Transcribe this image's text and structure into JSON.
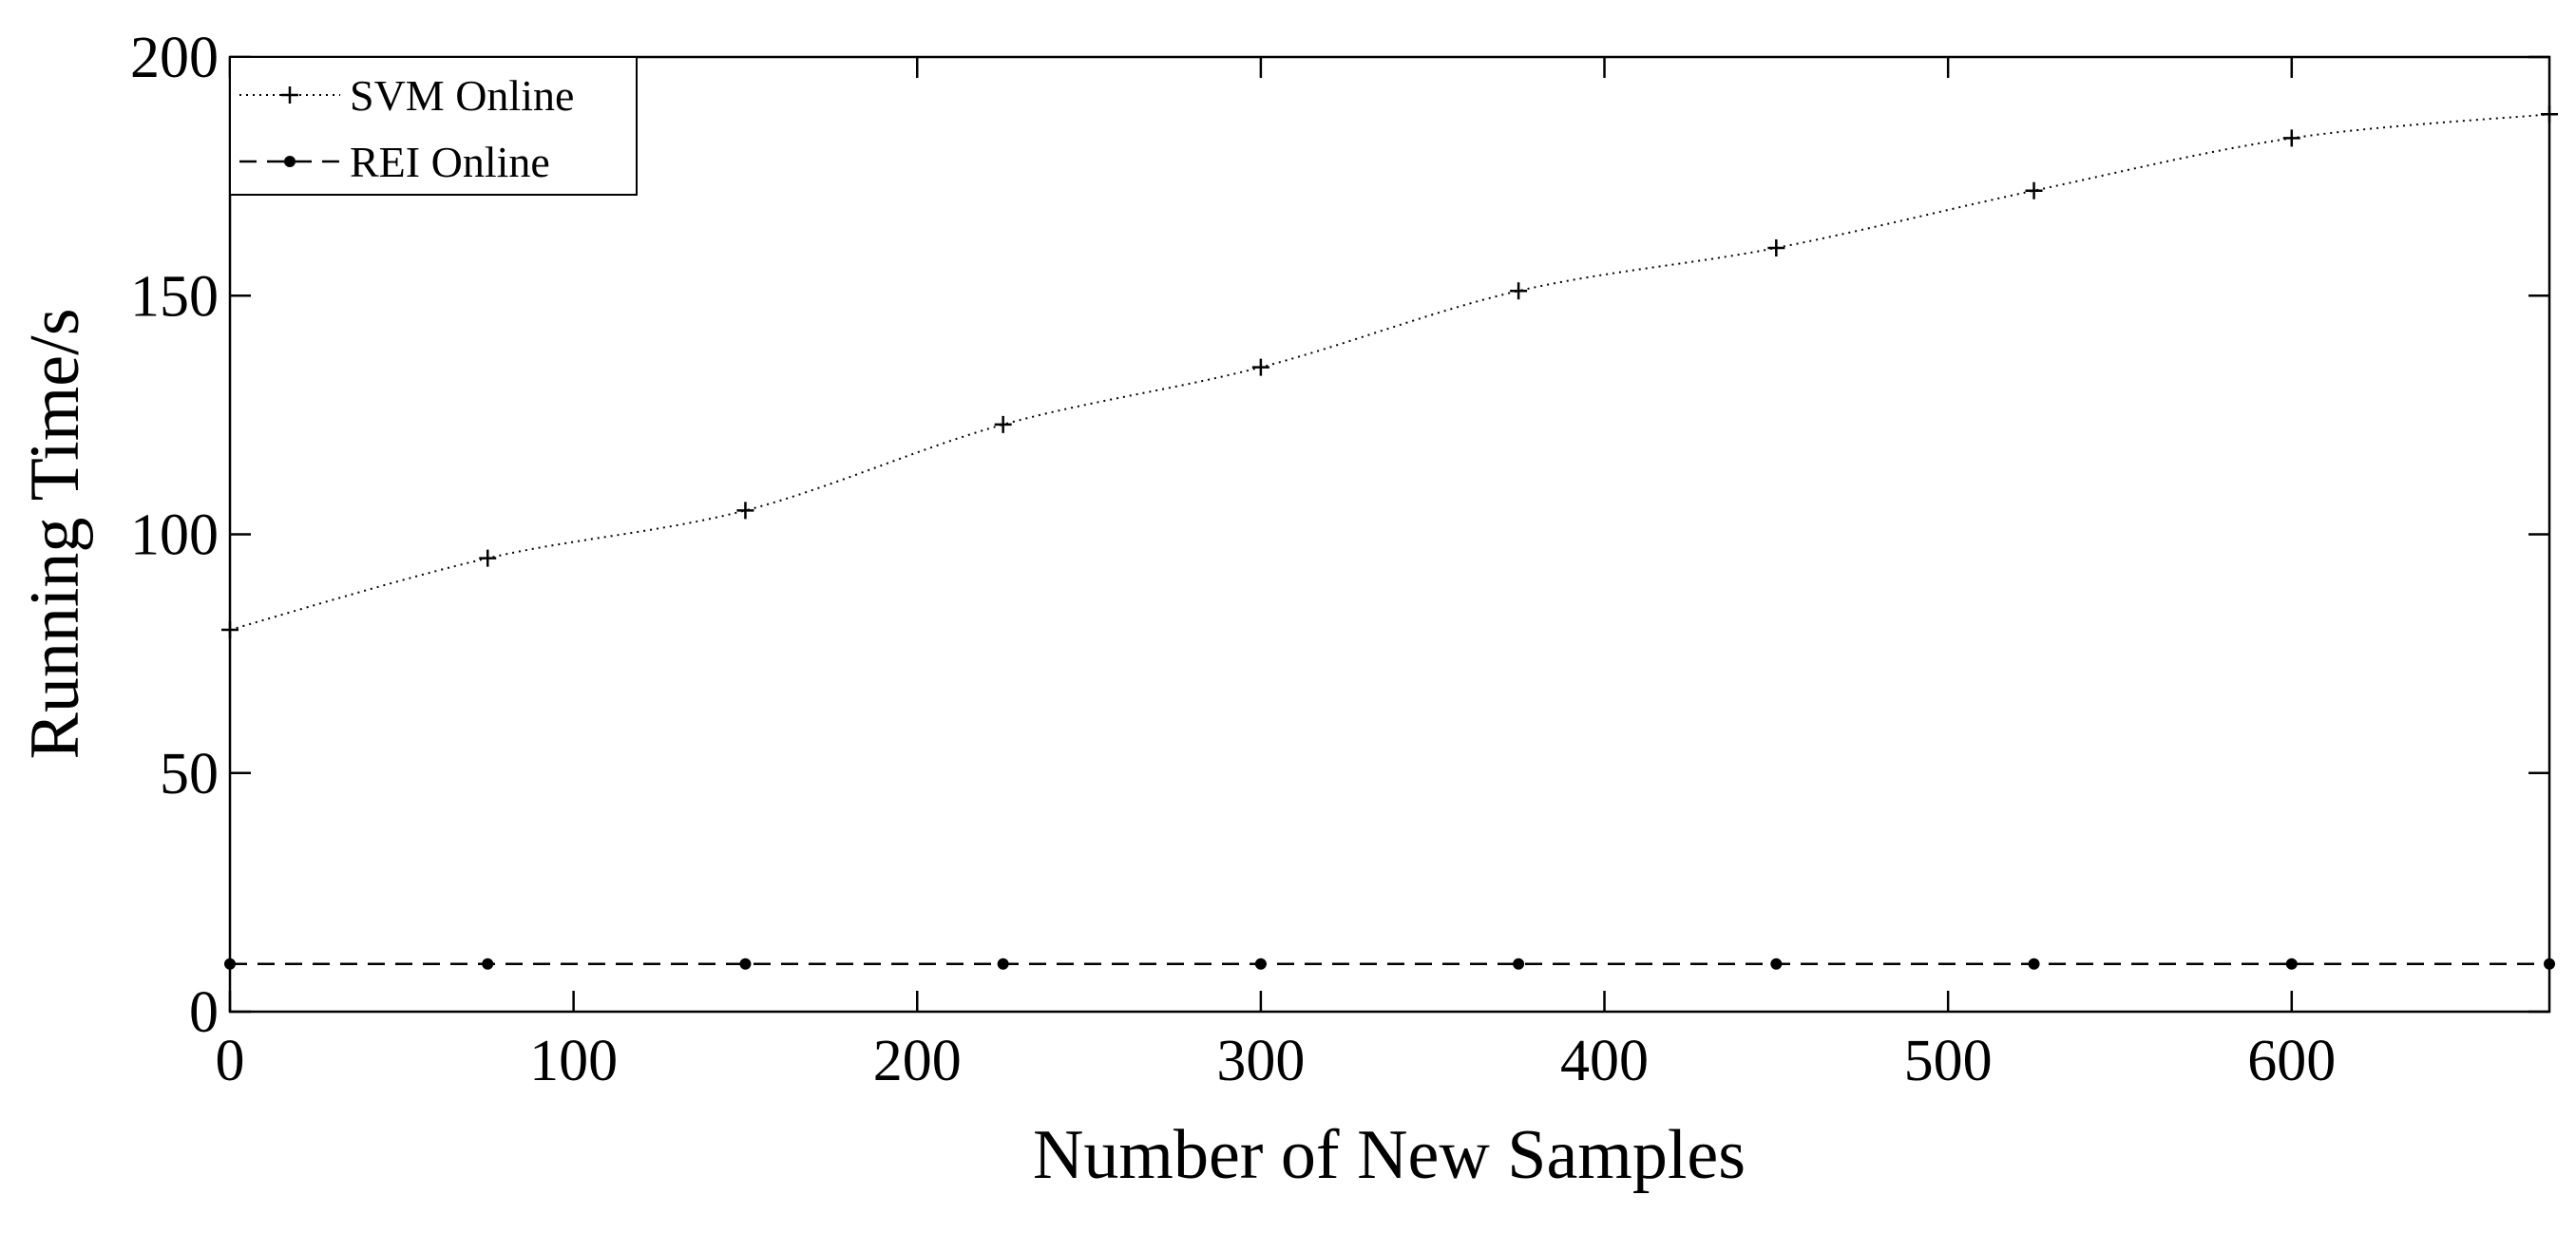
{
  "chart_data": {
    "type": "line",
    "title": "",
    "xlabel": "Number of New Samples",
    "ylabel": "Running Time/s",
    "xlim": [
      0,
      675
    ],
    "ylim": [
      0,
      200
    ],
    "x_ticks": [
      0,
      100,
      200,
      300,
      400,
      500,
      600
    ],
    "y_ticks": [
      0,
      50,
      100,
      150,
      200
    ],
    "x_tick_labels": [
      "0",
      "100",
      "200",
      "300",
      "400",
      "500",
      "600"
    ],
    "y_tick_labels": [
      "0",
      "50",
      "100",
      "150",
      "200"
    ],
    "grid": false,
    "legend_position": "top-left",
    "x": [
      0,
      75,
      150,
      225,
      300,
      375,
      450,
      525,
      600,
      675
    ],
    "series": [
      {
        "name": "SVM Online",
        "line_style": "dotted",
        "marker": "plus",
        "color": "#000000",
        "values": [
          80,
          95,
          105,
          123,
          135,
          151,
          160,
          172,
          183,
          188
        ]
      },
      {
        "name": "REI Online",
        "line_style": "dashed",
        "marker": "dot",
        "color": "#000000",
        "values": [
          10,
          10,
          10,
          10,
          10,
          10,
          10,
          10,
          10,
          10
        ]
      }
    ]
  }
}
